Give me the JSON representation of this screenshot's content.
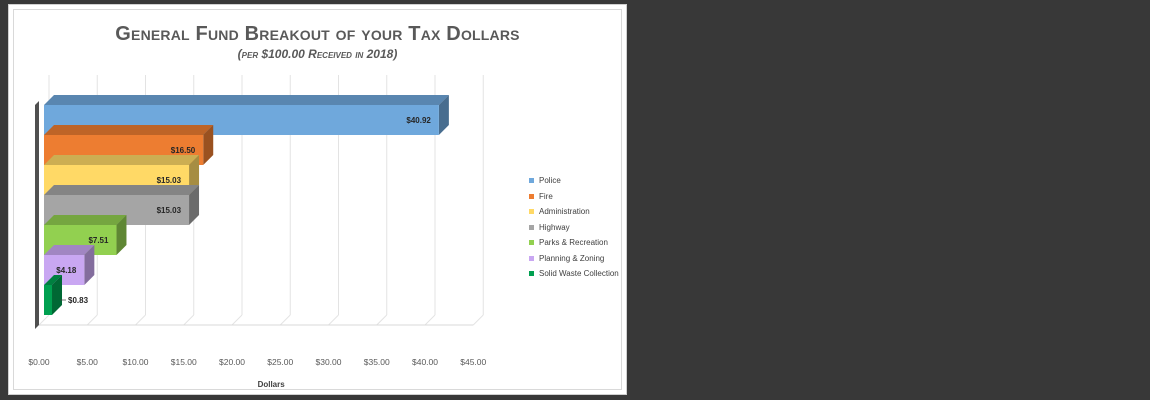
{
  "chart_data": {
    "type": "bar",
    "orientation": "horizontal",
    "style": "3d",
    "title": "General Fund Breakout of your Tax Dollars",
    "subtitle": "(per $100.00 Received in 2018)",
    "xlabel": "Dollars",
    "xlim": [
      0,
      45
    ],
    "xticks": [
      0,
      5,
      10,
      15,
      20,
      25,
      30,
      35,
      40,
      45
    ],
    "xtick_labels": [
      "$0.00",
      "$5.00",
      "$10.00",
      "$15.00",
      "$20.00",
      "$25.00",
      "$30.00",
      "$35.00",
      "$40.00",
      "$45.00"
    ],
    "grid": true,
    "legend_position": "right",
    "categories": [
      "Police",
      "Fire",
      "Administration",
      "Highway",
      "Parks & Recreation",
      "Planning & Zoning",
      "Solid Waste Collection"
    ],
    "values": [
      40.92,
      16.5,
      15.03,
      15.03,
      7.51,
      4.18,
      0.83
    ],
    "value_labels": [
      "$40.92",
      "$16.50",
      "$15.03",
      "$15.03",
      "$7.51",
      "$4.18",
      "$0.83"
    ],
    "colors": [
      "#6fa8dc",
      "#ed7d31",
      "#ffd966",
      "#a5a5a5",
      "#92d050",
      "#c9a7f2",
      "#00a050"
    ]
  }
}
